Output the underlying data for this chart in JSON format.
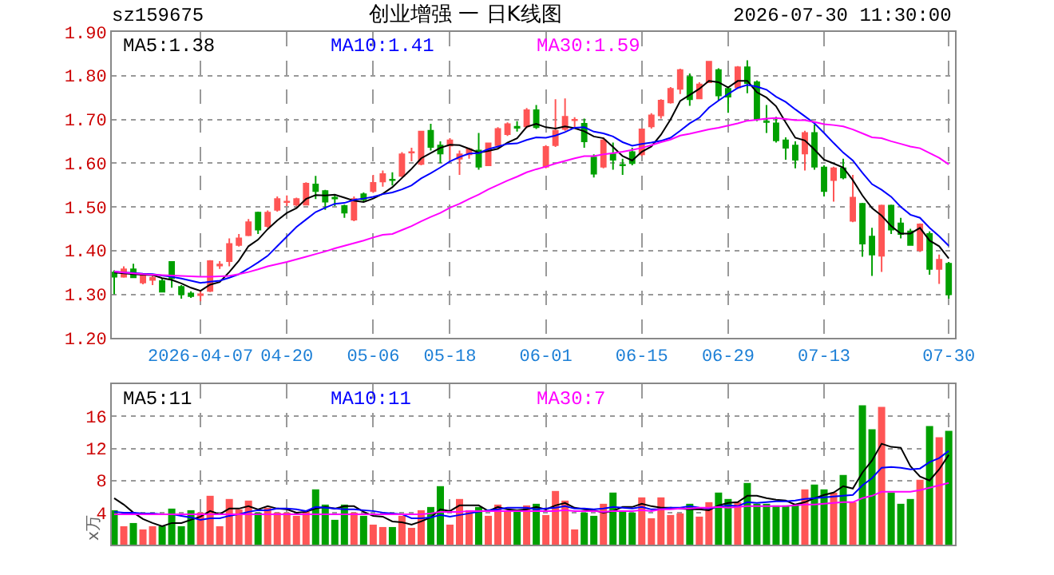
{
  "chart_data": [
    {
      "type": "candlestick",
      "title": "创业增强 一 日K线图",
      "annotations": [
        "sz159675",
        "2026-07-30 11:30:00"
      ],
      "categories": [
        null,
        null,
        null,
        null,
        null,
        null,
        null,
        null,
        null,
        "2026-04-07",
        null,
        null,
        null,
        null,
        null,
        null,
        null,
        null,
        "04-20",
        null,
        null,
        null,
        null,
        null,
        null,
        null,
        null,
        "05-06",
        null,
        null,
        null,
        null,
        null,
        null,
        null,
        "05-18",
        null,
        null,
        null,
        null,
        null,
        null,
        null,
        null,
        null,
        "06-01",
        null,
        null,
        null,
        null,
        null,
        null,
        null,
        null,
        null,
        "06-15",
        null,
        null,
        null,
        null,
        null,
        null,
        null,
        null,
        "06-29",
        null,
        null,
        null,
        null,
        null,
        null,
        null,
        null,
        null,
        "07-13",
        null,
        null,
        null,
        null,
        null,
        null,
        null,
        null,
        null,
        null,
        null,
        null,
        "07-30"
      ],
      "ohlc": [
        [
          1.35,
          1.355,
          1.3,
          1.34
        ],
        [
          1.34,
          1.364,
          1.338,
          1.357
        ],
        [
          1.357,
          1.37,
          1.337,
          1.339
        ],
        [
          1.327,
          1.348,
          1.323,
          1.345
        ],
        [
          1.333,
          1.343,
          1.321,
          1.338
        ],
        [
          1.33,
          1.337,
          1.305,
          1.306
        ],
        [
          1.374,
          1.376,
          1.315,
          1.337
        ],
        [
          1.317,
          1.321,
          1.29,
          1.3
        ],
        [
          1.302,
          1.307,
          1.292,
          1.296
        ],
        [
          1.298,
          1.308,
          1.284,
          1.3
        ],
        [
          1.308,
          1.378,
          1.305,
          1.376
        ],
        [
          1.366,
          1.376,
          1.358,
          1.368
        ],
        [
          1.376,
          1.428,
          1.364,
          1.415
        ],
        [
          1.413,
          1.438,
          1.409,
          1.428
        ],
        [
          1.435,
          1.472,
          1.433,
          1.465
        ],
        [
          1.487,
          1.489,
          1.438,
          1.448
        ],
        [
          1.456,
          1.492,
          1.452,
          1.487
        ],
        [
          1.493,
          1.524,
          1.489,
          1.518
        ],
        [
          1.511,
          1.526,
          1.502,
          1.512
        ],
        [
          1.505,
          1.521,
          1.502,
          1.518
        ],
        [
          1.505,
          1.556,
          1.504,
          1.553
        ],
        [
          1.551,
          1.571,
          1.518,
          1.536
        ],
        [
          1.536,
          1.539,
          1.493,
          1.512
        ],
        [
          1.521,
          1.526,
          1.502,
          1.519
        ],
        [
          1.502,
          1.505,
          1.475,
          1.487
        ],
        [
          1.471,
          1.524,
          1.467,
          1.518
        ],
        [
          1.529,
          1.533,
          1.512,
          1.517
        ],
        [
          1.536,
          1.573,
          1.532,
          1.555
        ],
        [
          1.558,
          1.583,
          1.546,
          1.575
        ],
        [
          1.562,
          1.579,
          1.549,
          1.561
        ],
        [
          1.571,
          1.625,
          1.568,
          1.62
        ],
        [
          1.624,
          1.635,
          1.604,
          1.625
        ],
        [
          1.598,
          1.674,
          1.595,
          1.672
        ],
        [
          1.674,
          1.69,
          1.629,
          1.637
        ],
        [
          1.64,
          1.65,
          1.6,
          1.622
        ],
        [
          1.64,
          1.657,
          1.608,
          1.652
        ],
        [
          1.61,
          1.629,
          1.573,
          1.62
        ],
        [
          1.62,
          1.635,
          1.61,
          1.632
        ],
        [
          1.629,
          1.669,
          1.585,
          1.592
        ],
        [
          1.595,
          1.647,
          1.593,
          1.645
        ],
        [
          1.641,
          1.682,
          1.635,
          1.678
        ],
        [
          1.666,
          1.693,
          1.662,
          1.689
        ],
        [
          1.683,
          1.696,
          1.672,
          1.681
        ],
        [
          1.684,
          1.726,
          1.68,
          1.721
        ],
        [
          1.721,
          1.733,
          1.678,
          1.682
        ],
        [
          1.592,
          1.641,
          1.588,
          1.637
        ],
        [
          1.641,
          1.746,
          1.637,
          1.674
        ],
        [
          1.678,
          1.748,
          1.674,
          1.706
        ],
        [
          1.698,
          1.705,
          1.682,
          1.699
        ],
        [
          1.69,
          1.702,
          1.635,
          1.65
        ],
        [
          1.613,
          1.62,
          1.567,
          1.576
        ],
        [
          1.592,
          1.659,
          1.588,
          1.652
        ],
        [
          1.62,
          1.647,
          1.585,
          1.608
        ],
        [
          1.596,
          1.61,
          1.573,
          1.595
        ],
        [
          1.625,
          1.635,
          1.595,
          1.6
        ],
        [
          1.62,
          1.679,
          1.616,
          1.677
        ],
        [
          1.684,
          1.714,
          1.679,
          1.709
        ],
        [
          1.709,
          1.746,
          1.702,
          1.743
        ],
        [
          1.739,
          1.774,
          1.736,
          1.77
        ],
        [
          1.77,
          1.816,
          1.758,
          1.813
        ],
        [
          1.797,
          1.805,
          1.731,
          1.746
        ],
        [
          1.748,
          1.785,
          1.746,
          1.78
        ],
        [
          1.785,
          1.834,
          1.783,
          1.832
        ],
        [
          1.813,
          1.817,
          1.743,
          1.755
        ],
        [
          1.77,
          1.776,
          1.715,
          1.752
        ],
        [
          1.773,
          1.822,
          1.77,
          1.819
        ],
        [
          1.819,
          1.835,
          1.76,
          1.783
        ],
        [
          1.785,
          1.789,
          1.696,
          1.702
        ],
        [
          1.695,
          1.733,
          1.669,
          1.694
        ],
        [
          1.691,
          1.706,
          1.647,
          1.652
        ],
        [
          1.652,
          1.659,
          1.608,
          1.635
        ],
        [
          1.64,
          1.65,
          1.588,
          1.608
        ],
        [
          1.622,
          1.674,
          1.583,
          1.669
        ],
        [
          1.669,
          1.688,
          1.585,
          1.592
        ],
        [
          1.59,
          1.595,
          1.524,
          1.536
        ],
        [
          1.561,
          1.592,
          1.512,
          1.588
        ],
        [
          1.588,
          1.61,
          1.563,
          1.567
        ],
        [
          1.468,
          1.573,
          1.465,
          1.521
        ],
        [
          1.507,
          1.509,
          1.386,
          1.416
        ],
        [
          1.432,
          1.452,
          1.342,
          1.391
        ],
        [
          1.388,
          1.505,
          1.351,
          1.503
        ],
        [
          1.503,
          1.505,
          1.438,
          1.448
        ],
        [
          1.462,
          1.475,
          1.428,
          1.438
        ],
        [
          1.444,
          1.45,
          1.411,
          1.413
        ],
        [
          1.401,
          1.462,
          1.397,
          1.46
        ],
        [
          1.438,
          1.444,
          1.345,
          1.358
        ],
        [
          1.358,
          1.391,
          1.324,
          1.379
        ],
        [
          1.37,
          1.374,
          1.29,
          1.3
        ]
      ],
      "colors": [
        "#00a000",
        "#ff5555",
        "#00a000",
        "#ff5555",
        "#ff5555",
        "#00a000",
        "#00a000",
        "#00a000",
        "#00a000",
        "#ff5555",
        "#ff5555",
        "#ff5555",
        "#ff5555",
        "#ff5555",
        "#ff5555",
        "#00a000",
        "#ff5555",
        "#ff5555",
        "#ff5555",
        "#ff5555",
        "#ff5555",
        "#00a000",
        "#00a000",
        "#00a000",
        "#00a000",
        "#ff5555",
        "#00a000",
        "#ff5555",
        "#ff5555",
        "#00a000",
        "#ff5555",
        "#ff5555",
        "#ff5555",
        "#00a000",
        "#00a000",
        "#ff5555",
        "#ff5555",
        "#ff5555",
        "#00a000",
        "#ff5555",
        "#ff5555",
        "#ff5555",
        "#00a000",
        "#ff5555",
        "#00a000",
        "#ff5555",
        "#ff5555",
        "#ff5555",
        "#ff5555",
        "#00a000",
        "#00a000",
        "#ff5555",
        "#00a000",
        "#00a000",
        "#00a000",
        "#ff5555",
        "#ff5555",
        "#ff5555",
        "#ff5555",
        "#ff5555",
        "#00a000",
        "#ff5555",
        "#ff5555",
        "#00a000",
        "#00a000",
        "#ff5555",
        "#00a000",
        "#00a000",
        "#00a000",
        "#00a000",
        "#00a000",
        "#00a000",
        "#ff5555",
        "#00a000",
        "#00a000",
        "#ff5555",
        "#00a000",
        "#ff5555",
        "#00a000",
        "#00a000",
        "#ff5555",
        "#00a000",
        "#00a000",
        "#00a000",
        "#ff5555",
        "#00a000",
        "#ff5555",
        "#00a000"
      ],
      "series": [
        {
          "name": "MA5:1.38",
          "type": "line",
          "color": "#000000",
          "values": [
            1.35,
            1.348,
            1.346,
            1.345,
            1.344,
            1.337,
            1.333,
            1.325,
            1.315,
            1.308,
            1.322,
            1.328,
            1.351,
            1.377,
            1.41,
            1.425,
            1.449,
            1.469,
            1.486,
            1.497,
            1.518,
            1.527,
            1.526,
            1.528,
            1.521,
            1.514,
            1.511,
            1.519,
            1.53,
            1.545,
            1.566,
            1.587,
            1.611,
            1.623,
            1.635,
            1.642,
            1.641,
            1.633,
            1.624,
            1.628,
            1.633,
            1.647,
            1.657,
            1.683,
            1.69,
            1.682,
            1.679,
            1.684,
            1.68,
            1.673,
            1.661,
            1.657,
            1.637,
            1.616,
            1.606,
            1.626,
            1.638,
            1.665,
            1.7,
            1.742,
            1.756,
            1.77,
            1.788,
            1.785,
            1.773,
            1.788,
            1.788,
            1.762,
            1.75,
            1.73,
            1.693,
            1.658,
            1.652,
            1.631,
            1.608,
            1.599,
            1.59,
            1.561,
            1.526,
            1.497,
            1.48,
            1.456,
            1.439,
            1.439,
            1.452,
            1.423,
            1.41,
            1.382
          ]
        },
        {
          "name": "MA10:1.41",
          "type": "line",
          "color": "#0000ff",
          "values": [
            1.352,
            1.35,
            1.349,
            1.347,
            1.346,
            1.343,
            1.34,
            1.336,
            1.331,
            1.326,
            1.329,
            1.331,
            1.338,
            1.346,
            1.359,
            1.373,
            1.388,
            1.41,
            1.432,
            1.454,
            1.471,
            1.488,
            1.498,
            1.507,
            1.509,
            1.516,
            1.519,
            1.523,
            1.529,
            1.533,
            1.54,
            1.549,
            1.565,
            1.577,
            1.59,
            1.604,
            1.614,
            1.622,
            1.623,
            1.632,
            1.638,
            1.644,
            1.645,
            1.653,
            1.659,
            1.658,
            1.663,
            1.671,
            1.681,
            1.682,
            1.672,
            1.668,
            1.661,
            1.648,
            1.64,
            1.644,
            1.647,
            1.651,
            1.658,
            1.674,
            1.691,
            1.704,
            1.727,
            1.743,
            1.758,
            1.772,
            1.779,
            1.775,
            1.768,
            1.752,
            1.74,
            1.723,
            1.707,
            1.691,
            1.669,
            1.646,
            1.624,
            1.606,
            1.578,
            1.552,
            1.539,
            1.523,
            1.5,
            1.482,
            1.475,
            1.452,
            1.433,
            1.411
          ]
        },
        {
          "name": "MA30:1.59",
          "type": "line",
          "color": "#ff00ff",
          "values": [
            1.352,
            1.35,
            1.348,
            1.346,
            1.345,
            1.344,
            1.343,
            1.342,
            1.341,
            1.34,
            1.34,
            1.341,
            1.342,
            1.346,
            1.351,
            1.357,
            1.364,
            1.369,
            1.374,
            1.38,
            1.386,
            1.392,
            1.398,
            1.405,
            1.411,
            1.417,
            1.423,
            1.43,
            1.436,
            1.438,
            1.447,
            1.456,
            1.467,
            1.477,
            1.486,
            1.498,
            1.507,
            1.518,
            1.528,
            1.54,
            1.55,
            1.56,
            1.569,
            1.579,
            1.586,
            1.592,
            1.599,
            1.605,
            1.611,
            1.616,
            1.616,
            1.62,
            1.623,
            1.626,
            1.63,
            1.635,
            1.641,
            1.648,
            1.654,
            1.663,
            1.667,
            1.672,
            1.677,
            1.681,
            1.686,
            1.691,
            1.697,
            1.699,
            1.702,
            1.703,
            1.701,
            1.698,
            1.698,
            1.694,
            1.689,
            1.687,
            1.684,
            1.677,
            1.668,
            1.659,
            1.657,
            1.65,
            1.644,
            1.638,
            1.634,
            1.623,
            1.612,
            1.597
          ]
        }
      ],
      "ylim": [
        1.2,
        1.9
      ],
      "yticks": [
        {
          "value": 1.2,
          "label": "1.20"
        },
        {
          "value": 1.3,
          "label": "1.30"
        },
        {
          "value": 1.4,
          "label": "1.40"
        },
        {
          "value": 1.5,
          "label": "1.50"
        },
        {
          "value": 1.6,
          "label": "1.60"
        },
        {
          "value": 1.7,
          "label": "1.70"
        },
        {
          "value": 1.8,
          "label": "1.80"
        },
        {
          "value": 1.9,
          "label": "1.90"
        }
      ],
      "grid": true,
      "legend": "top left"
    },
    {
      "type": "bar",
      "ylabel": "x万",
      "tick_labels": "y",
      "categories": [
        null,
        null,
        null,
        null,
        null,
        null,
        null,
        null,
        null,
        null,
        null,
        null,
        null,
        null,
        null,
        null,
        null,
        null,
        null,
        null,
        null,
        null,
        null,
        null,
        null,
        null,
        null,
        null,
        null,
        null,
        null,
        null,
        null,
        null,
        null,
        null,
        null,
        null,
        null,
        null,
        null,
        null,
        null,
        null,
        null,
        null,
        null,
        null,
        null,
        null,
        null,
        null,
        null,
        null,
        null,
        null,
        null,
        null,
        null,
        null,
        null,
        null,
        null,
        null,
        null,
        null,
        null,
        null,
        null,
        null,
        null,
        null,
        null,
        null,
        null,
        null,
        null,
        null,
        null,
        null,
        null,
        null,
        null,
        null,
        null,
        null,
        null,
        null
      ],
      "series": [
        {
          "values": [
            4.3,
            2.3,
            2.7,
            1.9,
            2.3,
            2.3,
            4.5,
            2.3,
            4.3,
            4.0,
            6.1,
            2.3,
            5.7,
            4.4,
            5.5,
            4.0,
            4.6,
            4.0,
            4.0,
            3.6,
            4.1,
            6.9,
            5.0,
            3.1,
            5.0,
            4.0,
            3.6,
            2.5,
            2.2,
            2.2,
            3.6,
            2.1,
            4.3,
            4.7,
            7.3,
            2.5,
            5.7,
            4.3,
            4.7,
            3.6,
            5.0,
            4.3,
            4.1,
            4.9,
            5.1,
            3.7,
            6.7,
            5.5,
            1.9,
            4.0,
            3.6,
            5.1,
            6.5,
            4.1,
            4.0,
            5.9,
            3.3,
            5.9,
            3.7,
            3.9,
            5.1,
            3.5,
            5.3,
            6.5,
            5.7,
            5.3,
            7.7,
            5.1,
            5.1,
            4.9,
            4.9,
            4.9,
            6.9,
            7.5,
            6.9,
            6.5,
            8.7,
            5.3,
            17.4,
            14.4,
            17.2,
            6.5,
            5.1,
            5.7,
            8.1,
            14.8,
            13.4,
            14.2
          ],
          "colors": [
            "#00a000",
            "#ff5555",
            "#00a000",
            "#ff5555",
            "#ff5555",
            "#00a000",
            "#00a000",
            "#00a000",
            "#00a000",
            "#ff5555",
            "#ff5555",
            "#ff5555",
            "#ff5555",
            "#ff5555",
            "#ff5555",
            "#00a000",
            "#ff5555",
            "#ff5555",
            "#ff5555",
            "#ff5555",
            "#ff5555",
            "#00a000",
            "#00a000",
            "#00a000",
            "#00a000",
            "#ff5555",
            "#00a000",
            "#ff5555",
            "#ff5555",
            "#00a000",
            "#ff5555",
            "#ff5555",
            "#ff5555",
            "#00a000",
            "#00a000",
            "#ff5555",
            "#ff5555",
            "#ff5555",
            "#00a000",
            "#ff5555",
            "#ff5555",
            "#ff5555",
            "#00a000",
            "#ff5555",
            "#00a000",
            "#ff5555",
            "#ff5555",
            "#ff5555",
            "#ff5555",
            "#00a000",
            "#00a000",
            "#ff5555",
            "#00a000",
            "#00a000",
            "#00a000",
            "#ff5555",
            "#ff5555",
            "#ff5555",
            "#ff5555",
            "#ff5555",
            "#00a000",
            "#ff5555",
            "#ff5555",
            "#00a000",
            "#00a000",
            "#ff5555",
            "#00a000",
            "#00a000",
            "#00a000",
            "#00a000",
            "#00a000",
            "#00a000",
            "#ff5555",
            "#00a000",
            "#00a000",
            "#ff5555",
            "#00a000",
            "#ff5555",
            "#00a000",
            "#00a000",
            "#ff5555",
            "#00a000",
            "#00a000",
            "#00a000",
            "#ff5555",
            "#00a000",
            "#ff5555",
            "#00a000"
          ]
        },
        {
          "name": "MA5:11",
          "type": "line",
          "color": "#000000",
          "values": [
            5.8,
            5.0,
            4.0,
            3.2,
            2.7,
            2.3,
            2.7,
            2.7,
            3.1,
            3.5,
            4.2,
            3.8,
            4.5,
            4.5,
            4.8,
            4.4,
            4.8,
            4.5,
            4.4,
            4.0,
            4.1,
            4.5,
            4.7,
            4.5,
            4.8,
            4.8,
            4.1,
            3.6,
            3.5,
            2.9,
            2.8,
            2.5,
            2.9,
            3.4,
            4.4,
            4.2,
            4.9,
            4.9,
            4.9,
            4.2,
            4.7,
            4.4,
            4.3,
            4.4,
            4.7,
            4.4,
            4.9,
            5.2,
            4.6,
            4.4,
            4.3,
            4.0,
            4.2,
            4.7,
            4.7,
            5.1,
            4.8,
            4.6,
            4.6,
            4.5,
            4.4,
            4.4,
            4.3,
            4.9,
            5.2,
            5.3,
            6.1,
            6.1,
            5.8,
            5.6,
            5.5,
            5.0,
            5.3,
            5.8,
            6.2,
            6.5,
            7.3,
            7.0,
            9.0,
            10.5,
            12.6,
            12.2,
            12.1,
            9.8,
            8.5,
            8.0,
            9.4,
            11.2
          ]
        },
        {
          "name": "MA10:11",
          "type": "line",
          "color": "#0000ff",
          "values": [
            4.1,
            4.0,
            4.0,
            3.9,
            3.9,
            3.8,
            3.8,
            3.6,
            3.4,
            3.1,
            3.3,
            3.3,
            3.6,
            3.8,
            4.1,
            4.3,
            4.3,
            4.5,
            4.5,
            4.4,
            4.2,
            4.7,
            4.6,
            4.5,
            4.4,
            4.4,
            4.3,
            4.2,
            4.0,
            3.9,
            3.8,
            3.3,
            3.3,
            3.4,
            3.7,
            3.5,
            3.7,
            3.9,
            4.1,
            4.3,
            4.4,
            4.6,
            4.6,
            4.6,
            4.4,
            4.5,
            4.6,
            4.8,
            4.5,
            4.5,
            4.4,
            4.5,
            4.7,
            4.6,
            4.5,
            4.7,
            4.4,
            4.4,
            4.6,
            4.6,
            4.8,
            4.6,
            4.5,
            4.7,
            4.9,
            4.8,
            5.3,
            5.2,
            5.3,
            5.4,
            5.4,
            5.5,
            5.7,
            5.8,
            5.9,
            6.0,
            6.1,
            6.2,
            7.4,
            8.3,
            9.6,
            9.7,
            9.6,
            9.4,
            9.5,
            10.3,
            10.8,
            11.7
          ]
        },
        {
          "name": "MA30:7",
          "type": "line",
          "color": "#ff00ff",
          "values": [
            3.8,
            3.8,
            3.8,
            3.8,
            3.8,
            3.8,
            3.8,
            3.8,
            3.8,
            3.8,
            3.8,
            3.8,
            3.8,
            3.8,
            3.8,
            3.8,
            3.8,
            3.8,
            3.8,
            3.8,
            3.8,
            3.8,
            3.8,
            3.8,
            3.8,
            3.8,
            3.8,
            3.8,
            3.8,
            3.8,
            3.8,
            3.8,
            3.8,
            3.9,
            4.1,
            4.1,
            4.1,
            4.2,
            4.2,
            4.2,
            4.2,
            4.2,
            4.2,
            4.2,
            4.2,
            4.2,
            4.2,
            4.3,
            4.2,
            4.2,
            4.2,
            4.1,
            4.2,
            4.2,
            4.2,
            4.3,
            4.2,
            4.4,
            4.4,
            4.5,
            4.5,
            4.6,
            4.6,
            4.7,
            4.6,
            4.7,
            4.8,
            4.8,
            4.8,
            4.8,
            4.8,
            4.9,
            5.0,
            5.0,
            5.1,
            5.2,
            5.3,
            5.3,
            5.8,
            6.1,
            6.6,
            6.6,
            6.6,
            6.6,
            6.8,
            7.1,
            7.4,
            7.7
          ]
        }
      ],
      "ylim": [
        0,
        20
      ],
      "yticks": [
        4,
        8,
        12,
        16
      ],
      "grid": true,
      "legend": "top left"
    }
  ]
}
